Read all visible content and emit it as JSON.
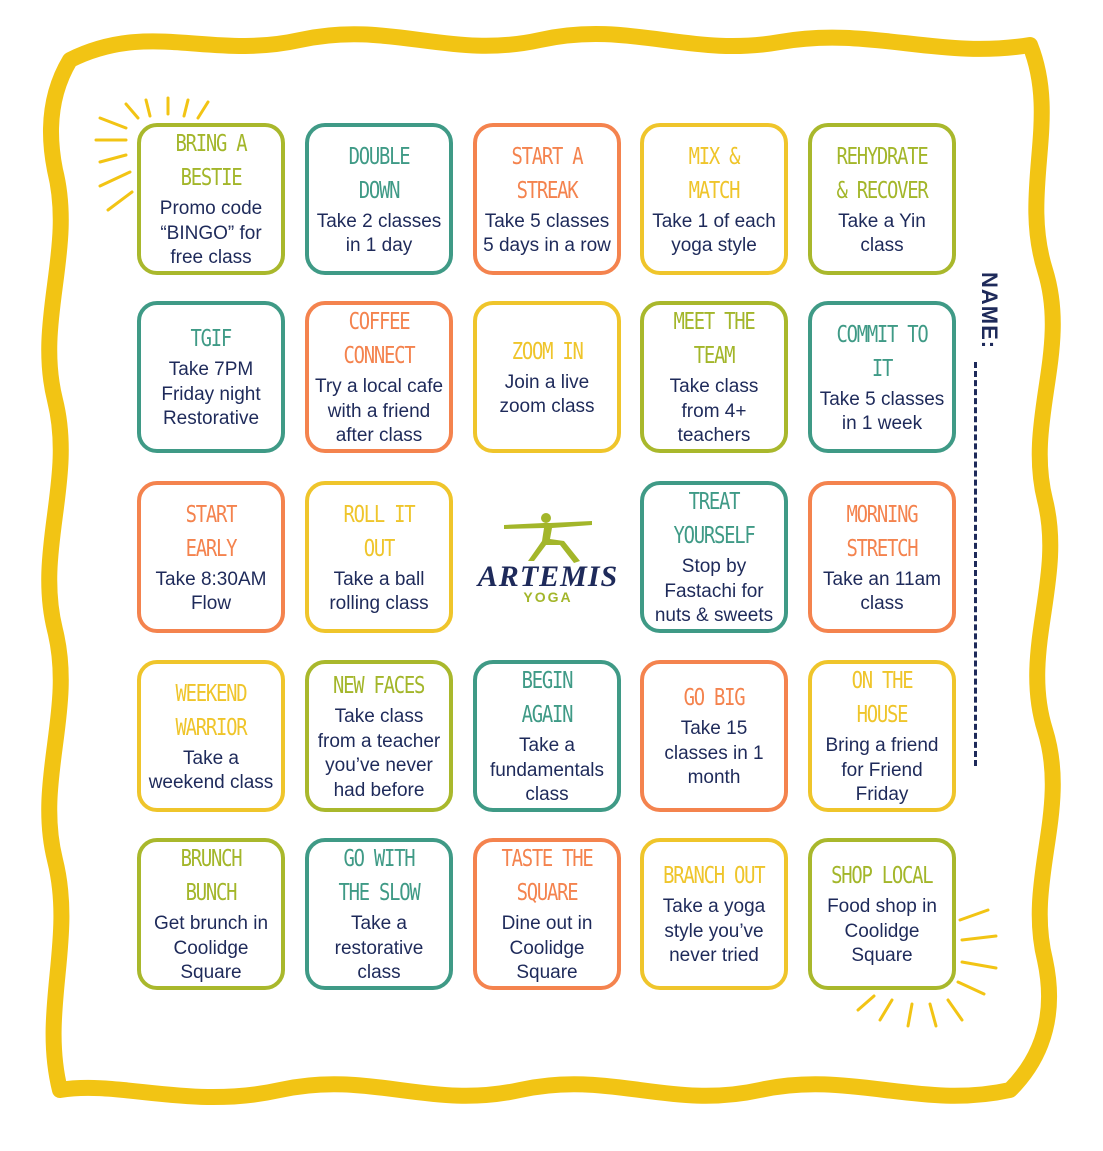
{
  "name_label": "NAME:",
  "logo": {
    "brand": "ARTEMIS",
    "sub": "YOGA"
  },
  "colors": {
    "lime": "#a9b82c",
    "teal": "#3f9a86",
    "orange": "#f4834e",
    "yellow": "#efc52b",
    "navy": "#1e2a5a",
    "frame": "#f2c414"
  },
  "grid": [
    [
      {
        "title": "BRING A BESTIE",
        "desc": "Promo code “BINGO” for free class",
        "color": "lime"
      },
      {
        "title": "DOUBLE DOWN",
        "desc": "Take 2 classes in 1 day",
        "color": "teal"
      },
      {
        "title": "START A STREAK",
        "desc": "Take 5 classes 5 days in a row",
        "color": "orange"
      },
      {
        "title": "MIX & MATCH",
        "desc": "Take 1 of each yoga style",
        "color": "yellow"
      },
      {
        "title": "REHYDRATE & RECOVER",
        "desc": "Take a Yin class",
        "color": "lime"
      }
    ],
    [
      {
        "title": "TGIF",
        "desc": "Take 7PM Friday night Restorative",
        "color": "teal"
      },
      {
        "title": "COFFEE CONNECT",
        "desc": "Try a local cafe with a friend after class",
        "color": "orange"
      },
      {
        "title": "ZOOM IN",
        "desc": "Join a live zoom class",
        "color": "yellow"
      },
      {
        "title": "MEET THE TEAM",
        "desc": "Take class from 4+ teachers",
        "color": "lime"
      },
      {
        "title": "COMMIT TO IT",
        "desc": "Take 5 classes in 1 week",
        "color": "teal"
      }
    ],
    [
      {
        "title": "START EARLY",
        "desc": "Take 8:30AM Flow",
        "color": "orange"
      },
      {
        "title": "ROLL IT OUT",
        "desc": "Take a ball rolling class",
        "color": "yellow"
      },
      {
        "title": "",
        "desc": "",
        "color": "logo"
      },
      {
        "title": "TREAT YOURSELF",
        "desc": "Stop by Fastachi for nuts & sweets",
        "color": "teal"
      },
      {
        "title": "MORNING STRETCH",
        "desc": "Take an 11am class",
        "color": "orange"
      }
    ],
    [
      {
        "title": "WEEKEND WARRIOR",
        "desc": "Take a weekend class",
        "color": "yellow"
      },
      {
        "title": "NEW FACES",
        "desc": "Take class from a teacher you’ve never had before",
        "color": "lime"
      },
      {
        "title": "BEGIN AGAIN",
        "desc": "Take a fundamentals class",
        "color": "teal"
      },
      {
        "title": "GO BIG",
        "desc": "Take 15 classes in 1 month",
        "color": "orange"
      },
      {
        "title": "ON THE HOUSE",
        "desc": "Bring a friend for Friend Friday",
        "color": "yellow"
      }
    ],
    [
      {
        "title": "BRUNCH BUNCH",
        "desc": "Get brunch in Coolidge Square",
        "color": "lime"
      },
      {
        "title": "GO WITH THE SLOW",
        "desc": "Take a restorative class",
        "color": "teal"
      },
      {
        "title": "TASTE THE SQUARE",
        "desc": "Dine out in Coolidge Square",
        "color": "orange"
      },
      {
        "title": "BRANCH OUT",
        "desc": "Take a yoga style you’ve never tried",
        "color": "yellow"
      },
      {
        "title": "SHOP LOCAL",
        "desc": "Food shop in Coolidge Square",
        "color": "lime"
      }
    ]
  ]
}
